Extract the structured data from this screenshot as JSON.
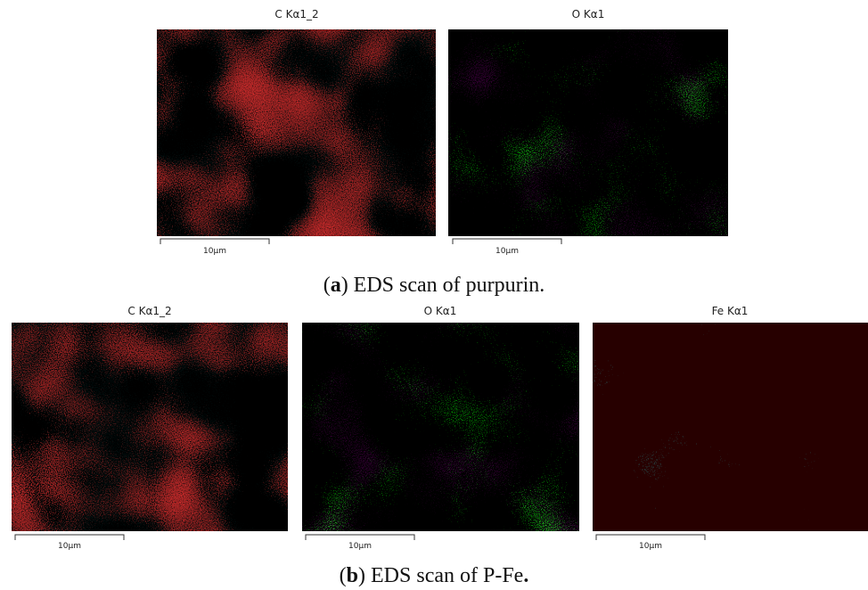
{
  "panels": [
    {
      "maps": [
        {
          "title": "C Kα1_2",
          "scale": "10µm"
        },
        {
          "title": "O Kα1",
          "scale": "10µm"
        }
      ],
      "caption": [
        {
          "text": "(",
          "bold": false
        },
        {
          "text": "a",
          "bold": true
        },
        {
          "text": ") EDS scan of purpurin.",
          "bold": false
        }
      ]
    },
    {
      "maps": [
        {
          "title": "C Kα1_2",
          "scale": "10µm"
        },
        {
          "title": "O Kα1",
          "scale": "10µm"
        },
        {
          "title": "Fe Kα1",
          "scale": "10µm"
        }
      ],
      "caption": [
        {
          "text": "(",
          "bold": false
        },
        {
          "text": "b",
          "bold": true
        },
        {
          "text": ") EDS scan of P-Fe",
          "bold": false
        },
        {
          "text": ".",
          "bold": true
        }
      ]
    }
  ]
}
